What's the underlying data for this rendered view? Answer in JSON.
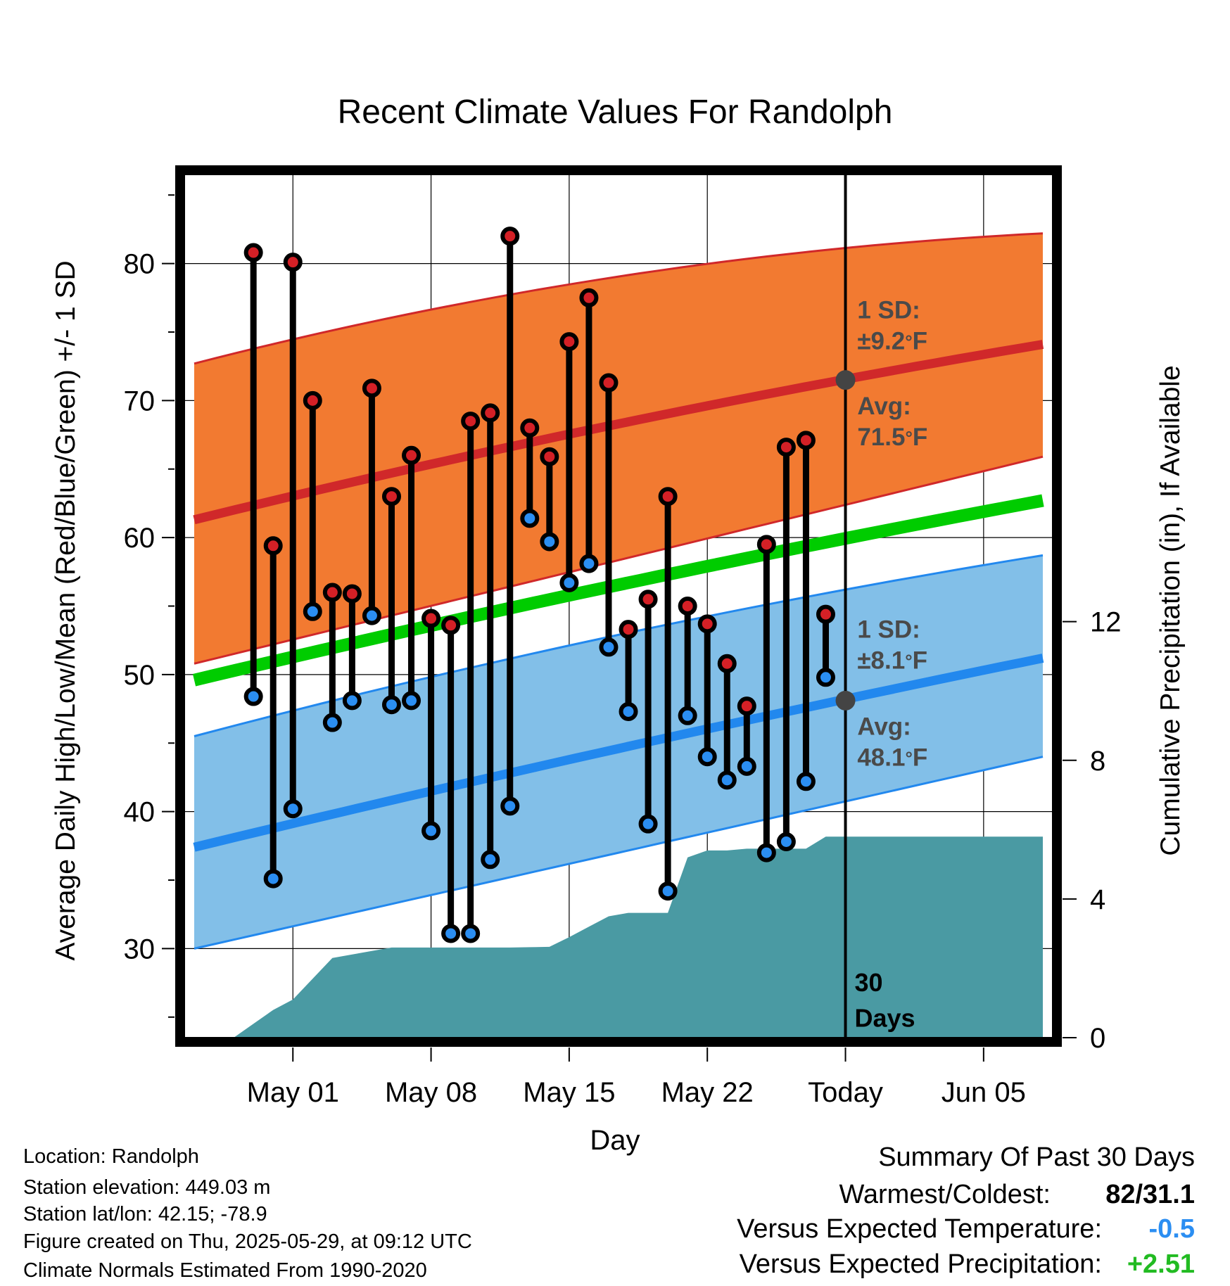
{
  "chart_data": {
    "type": "line",
    "title": "Recent Climate Values For Randolph",
    "xlabel": "Day",
    "ylabel": "Average Daily High/Low/Mean (Red/Blue/Green) +/- 1 SD",
    "y2label": "Cumulative Precipitation (in), If Available",
    "x_range_days": [
      -33.5,
      10.5
    ],
    "x_unit": "days relative to 2025-05-29 (Today)",
    "ylim": [
      23.5,
      86.5
    ],
    "y2lim": [
      0,
      24.9
    ],
    "yticks": [
      30,
      40,
      50,
      60,
      70,
      80
    ],
    "y2ticks": [
      0,
      4,
      8,
      12
    ],
    "xticks": [
      {
        "day": -28,
        "label": "May 01"
      },
      {
        "day": -21,
        "label": "May 08"
      },
      {
        "day": -14,
        "label": "May 15"
      },
      {
        "day": -7,
        "label": "May 22"
      },
      {
        "day": 0,
        "label": "Today"
      },
      {
        "day": 7,
        "label": "Jun 05"
      }
    ],
    "grid": true,
    "today_line": {
      "day": 0,
      "label_top": "30",
      "label_bottom": "Days"
    },
    "daily": [
      {
        "date": "2025-04-29",
        "high": 80.8,
        "low": 48.4
      },
      {
        "date": "2025-04-30",
        "high": 59.4,
        "low": 35.1
      },
      {
        "date": "2025-05-01",
        "high": 80.1,
        "low": 40.2
      },
      {
        "date": "2025-05-02",
        "high": 70.0,
        "low": 54.6
      },
      {
        "date": "2025-05-03",
        "high": 56.0,
        "low": 46.5
      },
      {
        "date": "2025-05-04",
        "high": 55.9,
        "low": 48.1
      },
      {
        "date": "2025-05-05",
        "high": 70.9,
        "low": 54.3
      },
      {
        "date": "2025-05-06",
        "high": 63.0,
        "low": 47.8
      },
      {
        "date": "2025-05-07",
        "high": 66.0,
        "low": 48.1
      },
      {
        "date": "2025-05-08",
        "high": 54.1,
        "low": 38.6
      },
      {
        "date": "2025-05-09",
        "high": 53.6,
        "low": 31.1
      },
      {
        "date": "2025-05-10",
        "high": 68.5,
        "low": 31.1
      },
      {
        "date": "2025-05-11",
        "high": 69.1,
        "low": 36.5
      },
      {
        "date": "2025-05-12",
        "high": 82.0,
        "low": 40.4
      },
      {
        "date": "2025-05-13",
        "high": 68.0,
        "low": 61.4
      },
      {
        "date": "2025-05-14",
        "high": 65.9,
        "low": 59.7
      },
      {
        "date": "2025-05-15",
        "high": 74.3,
        "low": 56.7
      },
      {
        "date": "2025-05-16",
        "high": 77.5,
        "low": 58.1
      },
      {
        "date": "2025-05-17",
        "high": 71.3,
        "low": 52.0
      },
      {
        "date": "2025-05-18",
        "high": 53.3,
        "low": 47.3
      },
      {
        "date": "2025-05-19",
        "high": 55.5,
        "low": 39.1
      },
      {
        "date": "2025-05-20",
        "high": 63.0,
        "low": 34.2
      },
      {
        "date": "2025-05-21",
        "high": 55.0,
        "low": 47.0
      },
      {
        "date": "2025-05-22",
        "high": 53.7,
        "low": 44.0
      },
      {
        "date": "2025-05-23",
        "high": 50.8,
        "low": 42.3
      },
      {
        "date": "2025-05-24",
        "high": 47.7,
        "low": 43.3
      },
      {
        "date": "2025-05-25",
        "high": 59.5,
        "low": 37.0
      },
      {
        "date": "2025-05-26",
        "high": 66.6,
        "low": 37.8
      },
      {
        "date": "2025-05-27",
        "high": 67.1,
        "low": 42.2
      },
      {
        "date": "2025-05-28",
        "high": 54.4,
        "low": 49.8
      }
    ],
    "normal_high": {
      "days": [
        -33,
        10
      ],
      "avg": [
        61.3,
        74.1
      ],
      "upper": [
        72.7,
        82.2
      ],
      "lower": [
        50.8,
        65.9
      ]
    },
    "normal_low": {
      "days": [
        -33,
        10
      ],
      "avg": [
        37.4,
        51.2
      ],
      "upper": [
        45.5,
        58.7
      ],
      "lower": [
        30.0,
        44.0
      ]
    },
    "normal_mean": {
      "days": [
        -33,
        10
      ],
      "values": [
        49.6,
        62.7
      ]
    },
    "precip_cumulative": [
      [
        -31.0,
        0.0
      ],
      [
        -30.0,
        0.4
      ],
      [
        -29.0,
        0.8
      ],
      [
        -28.0,
        1.1
      ],
      [
        -27.0,
        1.7
      ],
      [
        -26.0,
        2.3
      ],
      [
        -25.0,
        2.4
      ],
      [
        -24.0,
        2.5
      ],
      [
        -23.0,
        2.6
      ],
      [
        -22.0,
        2.6
      ],
      [
        -21.0,
        2.6
      ],
      [
        -20.0,
        2.6
      ],
      [
        -19.0,
        2.6
      ],
      [
        -18.0,
        2.6
      ],
      [
        -17.0,
        2.6
      ],
      [
        -16.0,
        2.61
      ],
      [
        -15.0,
        2.62
      ],
      [
        -14.0,
        2.9
      ],
      [
        -13.0,
        3.2
      ],
      [
        -12.0,
        3.5
      ],
      [
        -11.0,
        3.6
      ],
      [
        -10.0,
        3.6
      ],
      [
        -9.0,
        3.6
      ],
      [
        -8.0,
        5.2
      ],
      [
        -7.0,
        5.4
      ],
      [
        -6.0,
        5.4
      ],
      [
        -5.0,
        5.45
      ],
      [
        -4.0,
        5.45
      ],
      [
        -3.0,
        5.45
      ],
      [
        -2.0,
        5.45
      ],
      [
        -1.0,
        5.8
      ],
      [
        0.0,
        5.8
      ],
      [
        10.0,
        5.8
      ]
    ],
    "annotations": [
      {
        "line1": "1 SD:",
        "line2": "±9.2°F",
        "value": 9.2,
        "day": 0.6,
        "y": 76.0
      },
      {
        "line1": "Avg:",
        "line2": "71.5°F",
        "value": 71.5,
        "day": 0.6,
        "y": 69.0
      },
      {
        "line1": "1 SD:",
        "line2": "±8.1°F",
        "value": 8.1,
        "day": 0.6,
        "y": 52.7
      },
      {
        "line1": "Avg:",
        "line2": "48.1°F",
        "value": 48.1,
        "day": 0.6,
        "y": 45.6
      }
    ],
    "today_markers": [
      {
        "day": 0,
        "value": 71.5
      },
      {
        "day": 0,
        "value": 48.1
      }
    ]
  },
  "colors": {
    "high_band": "#f27a31",
    "high_line": "#d0282a",
    "low_band": "#82bfe8",
    "low_line": "#2288ee",
    "mean_line": "#00cc00",
    "precip": "#4a9aa3",
    "high_dot": "#d42026",
    "low_dot": "#2b8ef2",
    "annotation_text": "#4a4a4a",
    "marker": "#444444",
    "dep_temp": "#2b8ef2",
    "dep_precip": "#22bb22"
  },
  "footer": {
    "location": "Location: Randolph",
    "elevation": "Station elevation: 449.03 m",
    "latlon": "Station lat/lon: 42.15; -78.9",
    "created": "Figure created on Thu, 2025-05-29, at 09:12 UTC",
    "normals": "Climate Normals Estimated From 1990-2020"
  },
  "summary": {
    "title": "Summary Of Past 30 Days",
    "warm_cold_label": "Warmest/Coldest:",
    "warm_cold_value": "82/31.1",
    "dep_temp_label": "Versus Expected Temperature:",
    "dep_temp_value": "-0.5",
    "dep_precip_label": "Versus Expected Precipitation:",
    "dep_precip_value": "+2.51"
  }
}
